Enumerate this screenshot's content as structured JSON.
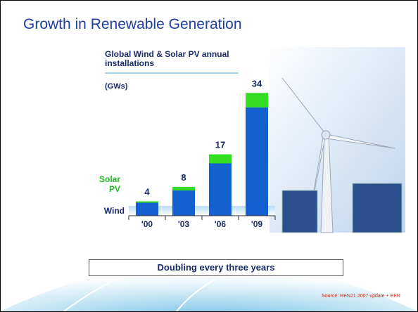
{
  "slide_title": "Growth in Renewable Generation",
  "chart_data": {
    "type": "stacked-bar",
    "title": "Global Wind & Solar PV annual installations",
    "unit_label": "(GWs)",
    "categories": [
      "'00",
      "'03",
      "'06",
      "'09"
    ],
    "series": [
      {
        "name": "Wind",
        "color": "#1560d0",
        "values": [
          3.6,
          7,
          14.5,
          30
        ]
      },
      {
        "name": "Solar PV",
        "color": "#33dd22",
        "values": [
          0.4,
          1,
          2.5,
          4
        ]
      }
    ],
    "totals": [
      4,
      8,
      17,
      34
    ],
    "ylim": [
      0,
      36
    ]
  },
  "callout": "Doubling every three years",
  "source": "Source: REN21 2007 update + EER"
}
